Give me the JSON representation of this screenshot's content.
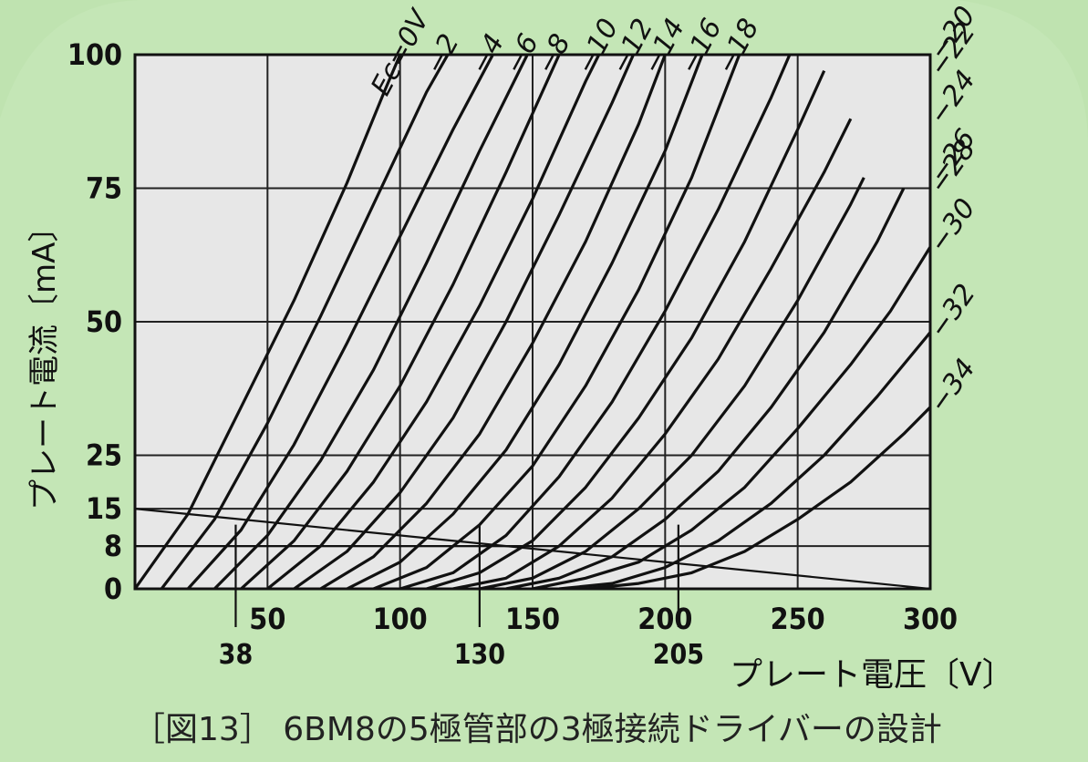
{
  "chart_data": {
    "type": "line",
    "title": "",
    "caption": "［図13］ 6BM8の5極管部の3極接続ドライバーの設計",
    "xlabel": "プレート電圧〔V〕",
    "ylabel": "プレート電流〔mA〕",
    "xlim": [
      0,
      300
    ],
    "ylim": [
      0,
      100
    ],
    "x_ticks": [
      50,
      100,
      150,
      200,
      250,
      300
    ],
    "x_extra_ticks": [
      38,
      130,
      205
    ],
    "y_ticks": [
      0,
      8,
      15,
      25,
      50,
      75,
      100
    ],
    "grid": true,
    "legend_title": "Ec=0V",
    "series": [
      {
        "name": "Ec=0V",
        "points": [
          [
            0,
            0
          ],
          [
            20,
            14
          ],
          [
            40,
            34
          ],
          [
            60,
            54
          ],
          [
            80,
            76
          ],
          [
            94,
            93
          ],
          [
            100,
            100
          ]
        ]
      },
      {
        "name": "−2",
        "points": [
          [
            10,
            0
          ],
          [
            30,
            13
          ],
          [
            50,
            31
          ],
          [
            70,
            51
          ],
          [
            90,
            72
          ],
          [
            110,
            93
          ],
          [
            118,
            100
          ]
        ]
      },
      {
        "name": "−4",
        "points": [
          [
            20,
            0
          ],
          [
            40,
            11
          ],
          [
            60,
            27
          ],
          [
            80,
            46
          ],
          [
            100,
            66
          ],
          [
            120,
            86
          ],
          [
            135,
            100
          ]
        ]
      },
      {
        "name": "−6",
        "points": [
          [
            30,
            0
          ],
          [
            50,
            10
          ],
          [
            70,
            24
          ],
          [
            90,
            41
          ],
          [
            110,
            61
          ],
          [
            130,
            82
          ],
          [
            148,
            100
          ]
        ]
      },
      {
        "name": "−8",
        "points": [
          [
            40,
            0
          ],
          [
            60,
            9
          ],
          [
            80,
            22
          ],
          [
            100,
            38
          ],
          [
            120,
            57
          ],
          [
            140,
            78
          ],
          [
            160,
            100
          ]
        ]
      },
      {
        "name": "−10",
        "points": [
          [
            50,
            0
          ],
          [
            70,
            8
          ],
          [
            90,
            20
          ],
          [
            110,
            35
          ],
          [
            130,
            53
          ],
          [
            150,
            73
          ],
          [
            170,
            95
          ],
          [
            175,
            100
          ]
        ]
      },
      {
        "name": "−12",
        "points": [
          [
            60,
            0
          ],
          [
            80,
            7
          ],
          [
            100,
            18
          ],
          [
            120,
            32
          ],
          [
            140,
            50
          ],
          [
            160,
            70
          ],
          [
            180,
            91
          ],
          [
            188,
            100
          ]
        ]
      },
      {
        "name": "−14",
        "points": [
          [
            70,
            0
          ],
          [
            90,
            6
          ],
          [
            110,
            16
          ],
          [
            130,
            29
          ],
          [
            150,
            46
          ],
          [
            170,
            65
          ],
          [
            190,
            87
          ],
          [
            200,
            100
          ]
        ]
      },
      {
        "name": "−16",
        "points": [
          [
            80,
            0
          ],
          [
            100,
            5
          ],
          [
            120,
            14
          ],
          [
            140,
            26
          ],
          [
            160,
            42
          ],
          [
            180,
            61
          ],
          [
            200,
            82
          ],
          [
            214,
            100
          ]
        ]
      },
      {
        "name": "−18",
        "points": [
          [
            90,
            0
          ],
          [
            110,
            4
          ],
          [
            130,
            12
          ],
          [
            150,
            23
          ],
          [
            170,
            38
          ],
          [
            190,
            56
          ],
          [
            210,
            77
          ],
          [
            228,
            100
          ]
        ]
      },
      {
        "name": "−20",
        "points": [
          [
            100,
            0
          ],
          [
            120,
            3
          ],
          [
            140,
            10
          ],
          [
            160,
            21
          ],
          [
            180,
            35
          ],
          [
            200,
            52
          ],
          [
            220,
            71
          ],
          [
            240,
            92
          ],
          [
            247,
            100
          ]
        ]
      },
      {
        "name": "−22",
        "points": [
          [
            110,
            0
          ],
          [
            130,
            3
          ],
          [
            150,
            9
          ],
          [
            170,
            19
          ],
          [
            190,
            32
          ],
          [
            210,
            47
          ],
          [
            230,
            65
          ],
          [
            250,
            86
          ],
          [
            260,
            97
          ]
        ]
      },
      {
        "name": "−24",
        "points": [
          [
            120,
            0
          ],
          [
            140,
            2
          ],
          [
            160,
            8
          ],
          [
            180,
            17
          ],
          [
            200,
            29
          ],
          [
            220,
            43
          ],
          [
            240,
            60
          ],
          [
            260,
            78
          ],
          [
            270,
            88
          ]
        ]
      },
      {
        "name": "−26",
        "points": [
          [
            130,
            0
          ],
          [
            150,
            2
          ],
          [
            170,
            7
          ],
          [
            190,
            15
          ],
          [
            210,
            25
          ],
          [
            230,
            38
          ],
          [
            250,
            54
          ],
          [
            270,
            72
          ],
          [
            275,
            77
          ]
        ]
      },
      {
        "name": "−28",
        "points": [
          [
            140,
            0
          ],
          [
            160,
            2
          ],
          [
            180,
            6
          ],
          [
            200,
            13
          ],
          [
            220,
            22
          ],
          [
            240,
            34
          ],
          [
            260,
            48
          ],
          [
            280,
            65
          ],
          [
            290,
            75
          ]
        ]
      },
      {
        "name": "−30",
        "points": [
          [
            150,
            0
          ],
          [
            170,
            2
          ],
          [
            190,
            5
          ],
          [
            210,
            11
          ],
          [
            230,
            19
          ],
          [
            250,
            30
          ],
          [
            270,
            42
          ],
          [
            285,
            52
          ],
          [
            300,
            64
          ]
        ]
      },
      {
        "name": "−32",
        "points": [
          [
            160,
            0
          ],
          [
            180,
            1
          ],
          [
            200,
            4
          ],
          [
            220,
            9
          ],
          [
            240,
            16
          ],
          [
            260,
            25
          ],
          [
            280,
            36
          ],
          [
            300,
            48
          ]
        ]
      },
      {
        "name": "−34",
        "points": [
          [
            170,
            0
          ],
          [
            190,
            1
          ],
          [
            210,
            3
          ],
          [
            230,
            7
          ],
          [
            250,
            13
          ],
          [
            270,
            20
          ],
          [
            290,
            29
          ],
          [
            300,
            34
          ]
        ]
      }
    ],
    "load_lines": [
      {
        "points": [
          [
            0,
            15
          ],
          [
            300,
            0
          ]
        ]
      },
      {
        "points": [
          [
            0,
            8
          ],
          [
            200,
            8
          ]
        ]
      }
    ],
    "vertical_markers": [
      38,
      130,
      205
    ]
  }
}
